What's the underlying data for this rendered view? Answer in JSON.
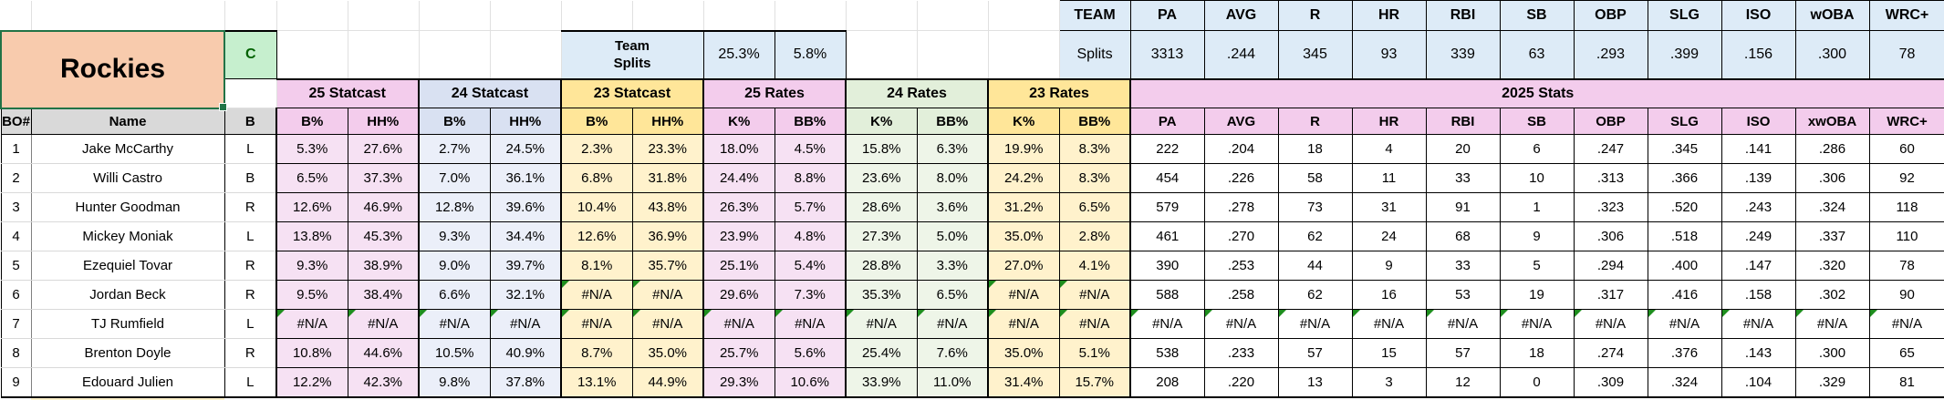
{
  "team": {
    "name": "Rockies",
    "corner_cell": "C"
  },
  "left_splits": {
    "label": "Team\nSplits",
    "k_pct": "25.3%",
    "bb_pct": "5.8%"
  },
  "team_table": {
    "corner_label": "TEAM",
    "row_label": "Splits",
    "columns": [
      "PA",
      "AVG",
      "R",
      "HR",
      "RBI",
      "SB",
      "OBP",
      "SLG",
      "ISO",
      "wOBA",
      "WRC+"
    ],
    "values": [
      "3313",
      ".244",
      "345",
      "93",
      "339",
      "63",
      ".293",
      ".399",
      ".156",
      ".300",
      "78"
    ]
  },
  "groups": [
    {
      "label": "25 Statcast",
      "cls": "pink",
      "span": 2
    },
    {
      "label": "24 Statcast",
      "cls": "blue",
      "span": 2
    },
    {
      "label": "23 Statcast",
      "cls": "yellow",
      "span": 2
    },
    {
      "label": "25 Rates",
      "cls": "pink",
      "span": 2
    },
    {
      "label": "24 Rates",
      "cls": "green",
      "span": 2
    },
    {
      "label": "23 Rates",
      "cls": "yellow",
      "span": 2
    },
    {
      "label": "2025 Stats",
      "cls": "pink",
      "span": 11
    }
  ],
  "columns": {
    "bo": "BO#",
    "name": "Name",
    "bats": "B",
    "statcast": [
      "B%",
      "HH%"
    ],
    "rates": [
      "K%",
      "BB%"
    ],
    "stats": [
      "PA",
      "AVG",
      "R",
      "HR",
      "RBI",
      "SB",
      "OBP",
      "SLG",
      "ISO",
      "xwOBA",
      "WRC+"
    ]
  },
  "players": [
    {
      "bo": "1",
      "name": "Jake McCarthy",
      "bats": "L",
      "statcast25": [
        "5.3%",
        "27.6%"
      ],
      "statcast24": [
        "2.7%",
        "24.5%"
      ],
      "statcast23": [
        "2.3%",
        "23.3%"
      ],
      "rates25": [
        "18.0%",
        "4.5%"
      ],
      "rates24": [
        "15.8%",
        "6.3%"
      ],
      "rates23": [
        "19.9%",
        "8.3%"
      ],
      "stats": [
        "222",
        ".204",
        "18",
        "4",
        "20",
        "6",
        ".247",
        ".345",
        ".141",
        ".286",
        "60"
      ]
    },
    {
      "bo": "2",
      "name": "Willi Castro",
      "bats": "B",
      "statcast25": [
        "6.5%",
        "37.3%"
      ],
      "statcast24": [
        "7.0%",
        "36.1%"
      ],
      "statcast23": [
        "6.8%",
        "31.8%"
      ],
      "rates25": [
        "24.4%",
        "8.8%"
      ],
      "rates24": [
        "23.6%",
        "8.0%"
      ],
      "rates23": [
        "24.2%",
        "8.3%"
      ],
      "stats": [
        "454",
        ".226",
        "58",
        "11",
        "33",
        "10",
        ".313",
        ".366",
        ".139",
        ".306",
        "92"
      ]
    },
    {
      "bo": "3",
      "name": "Hunter Goodman",
      "bats": "R",
      "statcast25": [
        "12.6%",
        "46.9%"
      ],
      "statcast24": [
        "12.8%",
        "39.6%"
      ],
      "statcast23": [
        "10.4%",
        "43.8%"
      ],
      "rates25": [
        "26.3%",
        "5.7%"
      ],
      "rates24": [
        "28.6%",
        "3.6%"
      ],
      "rates23": [
        "31.2%",
        "6.5%"
      ],
      "stats": [
        "579",
        ".278",
        "73",
        "31",
        "91",
        "1",
        ".323",
        ".520",
        ".243",
        ".324",
        "118"
      ]
    },
    {
      "bo": "4",
      "name": "Mickey Moniak",
      "bats": "L",
      "statcast25": [
        "13.8%",
        "45.3%"
      ],
      "statcast24": [
        "9.3%",
        "34.4%"
      ],
      "statcast23": [
        "12.6%",
        "36.9%"
      ],
      "rates25": [
        "23.9%",
        "4.8%"
      ],
      "rates24": [
        "27.3%",
        "5.0%"
      ],
      "rates23": [
        "35.0%",
        "2.8%"
      ],
      "stats": [
        "461",
        ".270",
        "62",
        "24",
        "68",
        "9",
        ".306",
        ".518",
        ".249",
        ".337",
        "110"
      ]
    },
    {
      "bo": "5",
      "name": "Ezequiel Tovar",
      "bats": "R",
      "statcast25": [
        "9.3%",
        "38.9%"
      ],
      "statcast24": [
        "9.0%",
        "39.7%"
      ],
      "statcast23": [
        "8.1%",
        "35.7%"
      ],
      "rates25": [
        "25.1%",
        "5.4%"
      ],
      "rates24": [
        "28.8%",
        "3.3%"
      ],
      "rates23": [
        "27.0%",
        "4.1%"
      ],
      "stats": [
        "390",
        ".253",
        "44",
        "9",
        "33",
        "5",
        ".294",
        ".400",
        ".147",
        ".320",
        "78"
      ]
    },
    {
      "bo": "6",
      "name": "Jordan Beck",
      "bats": "R",
      "statcast25": [
        "9.5%",
        "38.4%"
      ],
      "statcast24": [
        "6.6%",
        "32.1%"
      ],
      "statcast23": [
        "#N/A",
        "#N/A"
      ],
      "rates25": [
        "29.6%",
        "7.3%"
      ],
      "rates24": [
        "35.3%",
        "6.5%"
      ],
      "rates23": [
        "#N/A",
        "#N/A"
      ],
      "stats": [
        "588",
        ".258",
        "62",
        "16",
        "53",
        "19",
        ".317",
        ".416",
        ".158",
        ".302",
        "90"
      ]
    },
    {
      "bo": "7",
      "name": "TJ Rumfield",
      "bats": "L",
      "statcast25": [
        "#N/A",
        "#N/A"
      ],
      "statcast24": [
        "#N/A",
        "#N/A"
      ],
      "statcast23": [
        "#N/A",
        "#N/A"
      ],
      "rates25": [
        "#N/A",
        "#N/A"
      ],
      "rates24": [
        "#N/A",
        "#N/A"
      ],
      "rates23": [
        "#N/A",
        "#N/A"
      ],
      "stats": [
        "#N/A",
        "#N/A",
        "#N/A",
        "#N/A",
        "#N/A",
        "#N/A",
        "#N/A",
        "#N/A",
        "#N/A",
        "#N/A",
        "#N/A"
      ]
    },
    {
      "bo": "8",
      "name": "Brenton Doyle",
      "bats": "R",
      "statcast25": [
        "10.8%",
        "44.6%"
      ],
      "statcast24": [
        "10.5%",
        "40.9%"
      ],
      "statcast23": [
        "8.7%",
        "35.0%"
      ],
      "rates25": [
        "25.7%",
        "5.6%"
      ],
      "rates24": [
        "25.4%",
        "7.6%"
      ],
      "rates23": [
        "35.0%",
        "5.1%"
      ],
      "stats": [
        "538",
        ".233",
        "57",
        "15",
        "57",
        "18",
        ".274",
        ".376",
        ".143",
        ".300",
        "65"
      ]
    },
    {
      "bo": "9",
      "name": "Edouard Julien",
      "bats": "L",
      "statcast25": [
        "12.2%",
        "42.3%"
      ],
      "statcast24": [
        "9.8%",
        "37.8%"
      ],
      "statcast23": [
        "13.1%",
        "44.9%"
      ],
      "rates25": [
        "29.3%",
        "10.6%"
      ],
      "rates24": [
        "33.9%",
        "11.0%"
      ],
      "rates23": [
        "31.4%",
        "15.7%"
      ],
      "stats": [
        "208",
        ".220",
        "13",
        "3",
        "12",
        "0",
        ".309",
        ".324",
        ".104",
        ".329",
        "81"
      ]
    }
  ],
  "colors": {
    "team_cell_orange": "#F8CBAD",
    "selection_green": "#217346",
    "good_cell_bg": "#C6EFCE",
    "good_cell_text": "#006100",
    "splits_blue": "#DDEBF7",
    "header_gray": "#D9D9D9",
    "pink_header": "#F3CCEC",
    "pink_body": "#F6E1F3",
    "blue_header": "#D9E1F2",
    "blue_body": "#EBEFF9",
    "yellow_header": "#FFE699",
    "yellow_body": "#FFF2CC",
    "green_header": "#E2EFDA",
    "green_body": "#EEF5E8",
    "error_indicator": "#1E8E1E"
  }
}
